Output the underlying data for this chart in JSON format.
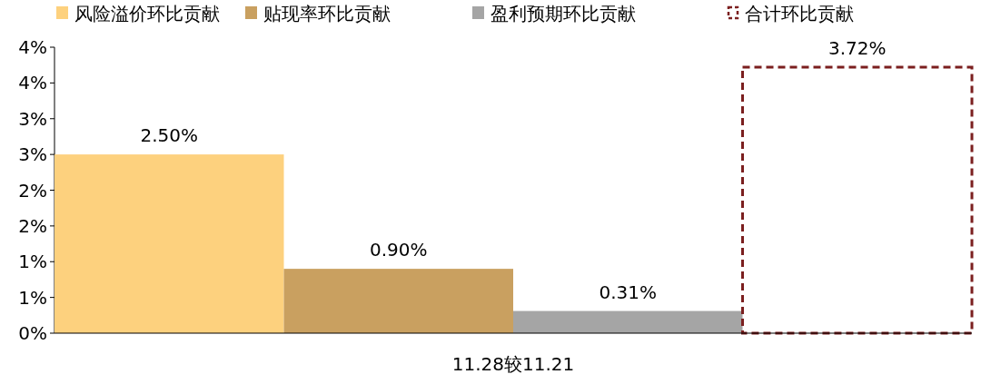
{
  "chart_data": {
    "type": "bar",
    "categories": [
      "11.28较11.21"
    ],
    "series": [
      {
        "name": "风险溢价环比贡献",
        "color": "#fdd17e",
        "values": [
          2.5
        ],
        "value_labels": [
          "2.50%"
        ]
      },
      {
        "name": "贴现率环比贡献",
        "color": "#c9a060",
        "values": [
          0.9
        ],
        "value_labels": [
          "0.90%"
        ]
      },
      {
        "name": "盈利预期环比贡献",
        "color": "#a5a5a5",
        "values": [
          0.31
        ],
        "value_labels": [
          "0.31%"
        ]
      },
      {
        "name": "合计环比贡献",
        "color": "#7b1f1f",
        "values": [
          3.72
        ],
        "value_labels": [
          "3.72%"
        ],
        "line_style": "dashed"
      }
    ],
    "ylim": [
      0,
      4
    ],
    "yticks": [
      {
        "value": 0,
        "label": "0%"
      },
      {
        "value": 0.5,
        "label": "1%"
      },
      {
        "value": 1,
        "label": "1%"
      },
      {
        "value": 1.5,
        "label": "2%"
      },
      {
        "value": 2,
        "label": "2%"
      },
      {
        "value": 2.5,
        "label": "3%"
      },
      {
        "value": 3,
        "label": "3%"
      },
      {
        "value": 3.5,
        "label": "4%"
      },
      {
        "value": 4,
        "label": "4%"
      }
    ],
    "legend": "top"
  }
}
